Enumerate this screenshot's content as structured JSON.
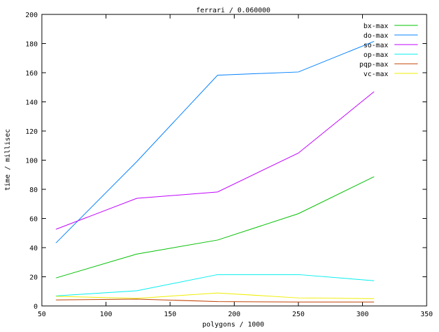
{
  "chart_data": {
    "type": "line",
    "title": "ferrari / 0.060000",
    "xlabel": "polygons / 1000",
    "ylabel": "time / millisec",
    "xlim": [
      50,
      350
    ],
    "ylim": [
      0,
      200
    ],
    "xticks": [
      50,
      100,
      150,
      200,
      250,
      300,
      350
    ],
    "yticks": [
      0,
      20,
      40,
      60,
      80,
      100,
      120,
      140,
      160,
      180,
      200
    ],
    "grid": false,
    "legend_placement": "top-right",
    "x": [
      61,
      124,
      187,
      250,
      309
    ],
    "series": [
      {
        "name": "bx-max",
        "color": "#00c000",
        "values": [
          19.2,
          35.6,
          45.2,
          63.3,
          88.7
        ]
      },
      {
        "name": "do-max",
        "color": "#0080ff",
        "values": [
          43.2,
          99,
          158.3,
          160.5,
          181.5
        ]
      },
      {
        "name": "so-max",
        "color": "#c000ff",
        "values": [
          52.6,
          73.8,
          78.2,
          104.9,
          147
        ]
      },
      {
        "name": "op-max",
        "color": "#00eeee",
        "values": [
          6.9,
          10.4,
          21.5,
          21.5,
          17.3
        ]
      },
      {
        "name": "pqp-max",
        "color": "#c04000",
        "values": [
          4.1,
          4.7,
          3.0,
          2.7,
          2.7
        ]
      },
      {
        "name": "vc-max",
        "color": "#eeee00",
        "values": [
          6.6,
          5.2,
          8.9,
          5.5,
          5.0
        ]
      }
    ]
  }
}
